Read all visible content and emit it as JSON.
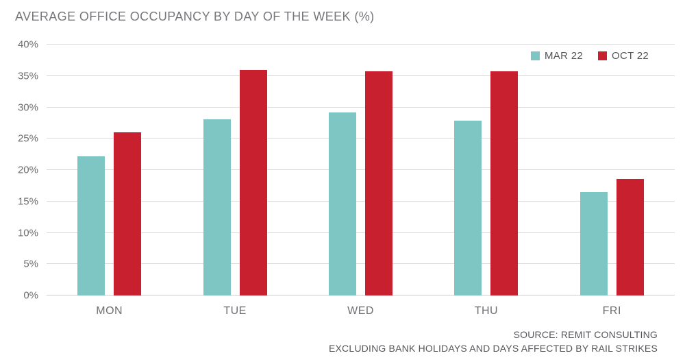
{
  "title": "AVERAGE OFFICE OCCUPANCY BY DAY OF THE WEEK (%)",
  "footer": {
    "line1": "SOURCE: REMIT CONSULTING",
    "line2": "EXCLUDING BANK HOLIDAYS AND DAYS AFFECTED BY RAIL STRIKES"
  },
  "colors": {
    "mar22": "#7dc6c4",
    "oct22": "#c9202f",
    "gridline": "#dadadb",
    "text": "#6d6e71"
  },
  "chart_data": {
    "type": "bar",
    "title": "AVERAGE OFFICE OCCUPANCY BY DAY OF THE WEEK (%)",
    "categories": [
      "MON",
      "TUE",
      "WED",
      "THU",
      "FRI"
    ],
    "series": [
      {
        "name": "MAR 22",
        "color": "#7dc6c4",
        "values": [
          22.2,
          28.1,
          29.2,
          27.9,
          16.5
        ]
      },
      {
        "name": "OCT 22",
        "color": "#c9202f",
        "values": [
          26.0,
          36.0,
          35.7,
          35.7,
          18.6
        ]
      }
    ],
    "xlabel": "",
    "ylabel": "",
    "ylim": [
      0,
      40
    ],
    "ytick_step": 5,
    "ytick_suffix": "%",
    "grid": true,
    "legend_position": "top-right"
  }
}
